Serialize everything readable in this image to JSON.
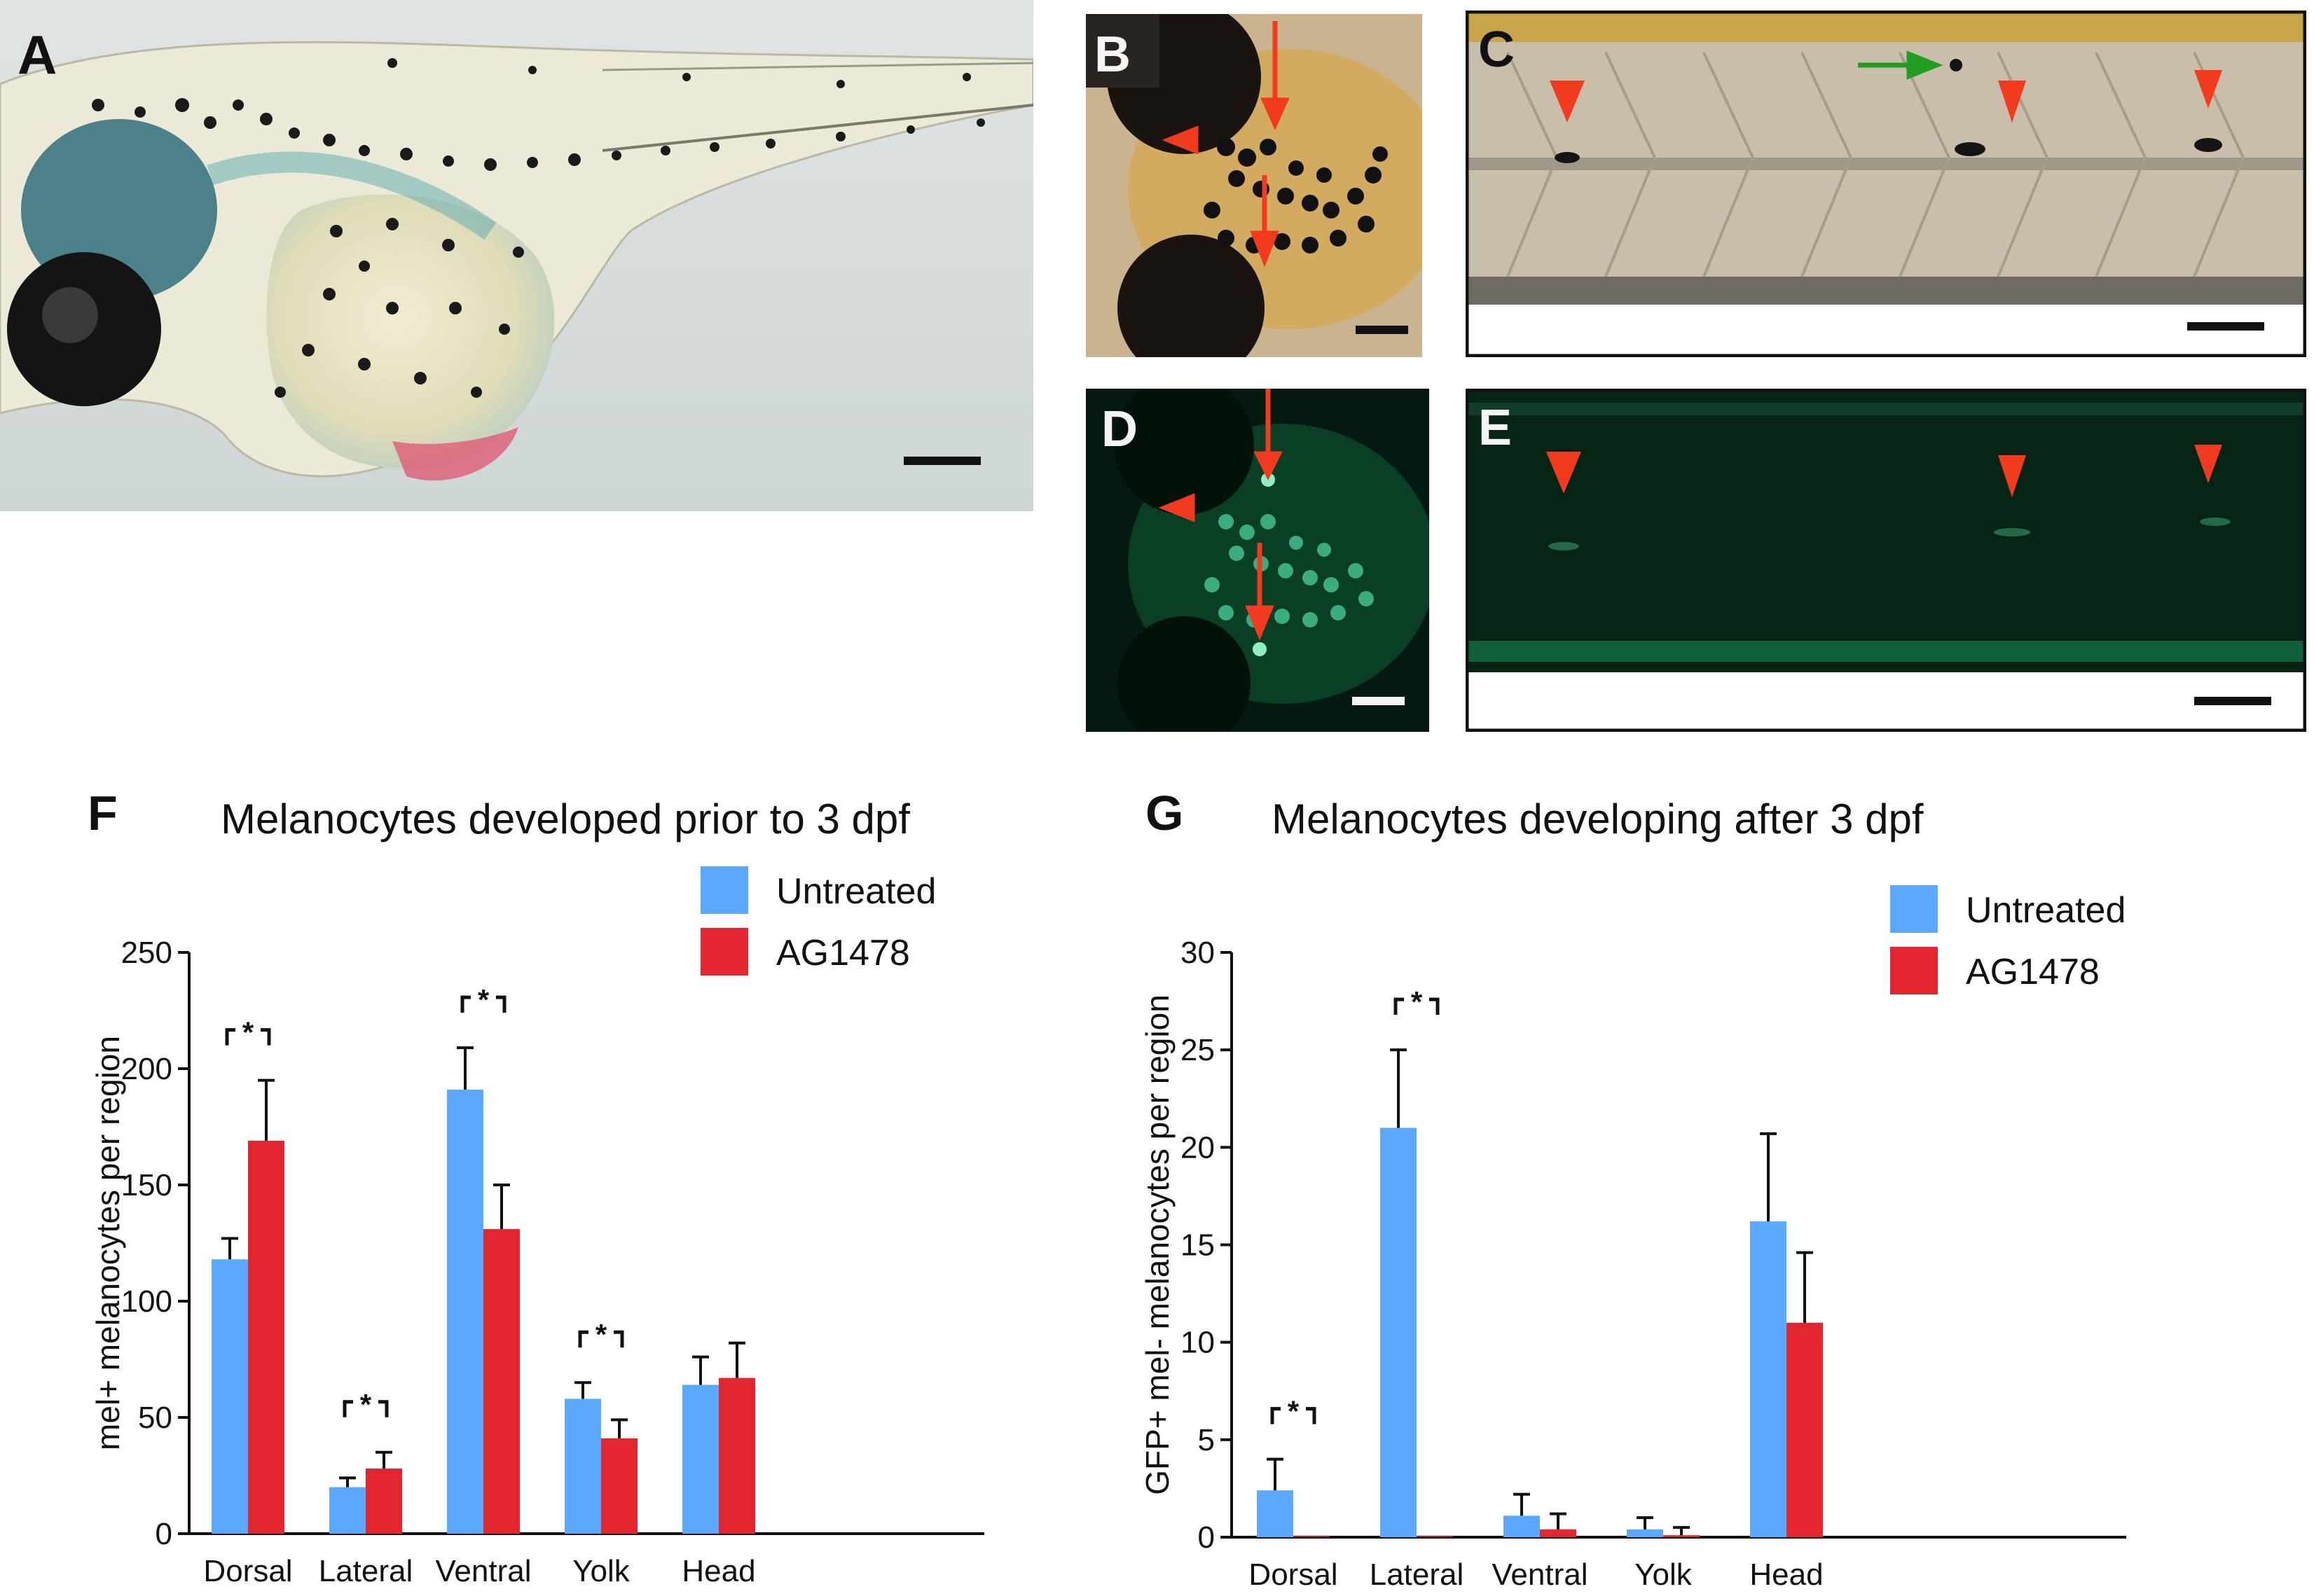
{
  "panels": {
    "A": {
      "label": "A"
    },
    "B": {
      "label": "B"
    },
    "C": {
      "label": "C"
    },
    "D": {
      "label": "D"
    },
    "E": {
      "label": "E"
    }
  },
  "colors": {
    "untreated": "#5aa8ff",
    "ag1478": "#e3262e",
    "arrow_red": "#f23a1f",
    "arrow_green": "#1f9e1f"
  },
  "chart_data": [
    {
      "panel_label": "F",
      "type": "bar",
      "title": "Melanocytes developed prior to 3 dpf",
      "ylabel": "mel+ melanocytes per region",
      "xlabel": "",
      "categories": [
        "Dorsal",
        "Lateral",
        "Ventral",
        "Yolk",
        "Head"
      ],
      "ylim": [
        0,
        250
      ],
      "yticks": [
        "0",
        "50",
        "100",
        "150",
        "200",
        "250"
      ],
      "series": [
        {
          "name": "Untreated",
          "values": [
            118,
            20,
            191,
            58,
            64
          ],
          "errors": [
            9,
            4,
            18,
            7,
            12
          ]
        },
        {
          "name": "AG1478",
          "values": [
            169,
            28,
            131,
            41,
            67
          ],
          "errors": [
            26,
            7,
            19,
            8,
            15
          ]
        }
      ],
      "significance": [
        "*",
        "*",
        "*",
        "*",
        ""
      ],
      "legend": "top-right"
    },
    {
      "panel_label": "G",
      "type": "bar",
      "title": "Melanocytes developing after 3 dpf",
      "ylabel": "GFP+ mel- melanocytes per region",
      "xlabel": "",
      "categories": [
        "Dorsal",
        "Lateral",
        "Ventral",
        "Yolk",
        "Head"
      ],
      "ylim": [
        0,
        30
      ],
      "yticks": [
        "0",
        "5",
        "10",
        "15",
        "20",
        "25",
        "30"
      ],
      "series": [
        {
          "name": "Untreated",
          "values": [
            2.4,
            21,
            1.1,
            0.4,
            16.2
          ],
          "errors": [
            1.6,
            4,
            1.1,
            0.6,
            4.5
          ]
        },
        {
          "name": "AG1478",
          "values": [
            0.05,
            0.05,
            0.4,
            0.1,
            11
          ],
          "errors": [
            0,
            0,
            0.8,
            0.4,
            3.6
          ]
        }
      ],
      "significance": [
        "*",
        "*",
        "",
        "",
        ""
      ],
      "legend": "top-right"
    }
  ]
}
